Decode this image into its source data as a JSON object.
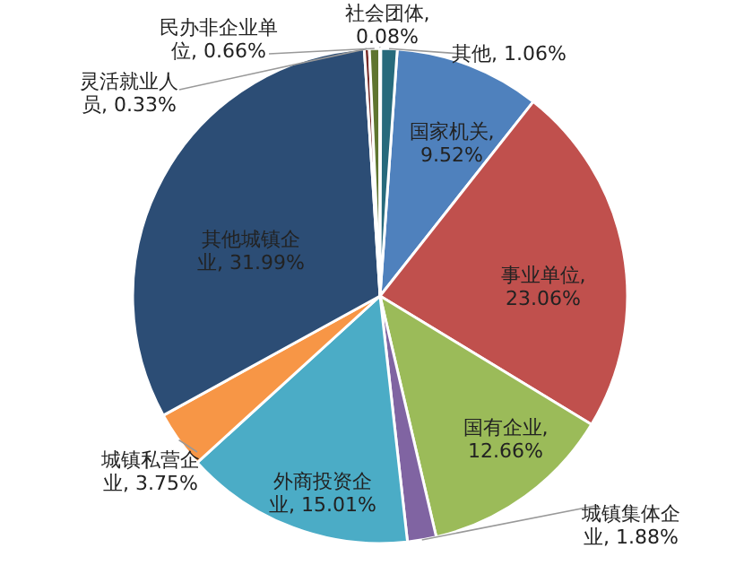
{
  "chart_data": {
    "type": "pie",
    "categories": [
      "国家机关",
      "事业单位",
      "国有企业",
      "城镇集体企业",
      "外商投资企业",
      "城镇私营企业",
      "其他城镇企业",
      "灵活就业人员",
      "民办非企业单位",
      "社会团体",
      "其他"
    ],
    "values": [
      9.52,
      23.06,
      12.66,
      1.88,
      15.01,
      3.75,
      31.99,
      0.33,
      0.66,
      0.08,
      1.06
    ],
    "value_labels": [
      ", 9.52%",
      ", 23.06%",
      ", 12.66%",
      ", 1.88%",
      ", 15.01%",
      ", 3.75%",
      ", 31.99%",
      ", 0.33%",
      ", 0.66%",
      ", 0.08%",
      ", 1.06%"
    ],
    "colors": [
      "#4f81bd",
      "#c0504d",
      "#9bbb59",
      "#8064a2",
      "#4bacc6",
      "#f79646",
      "#2c4d75",
      "#772c2a",
      "#5f7530",
      "#4d3b62",
      "#276a7c"
    ]
  }
}
